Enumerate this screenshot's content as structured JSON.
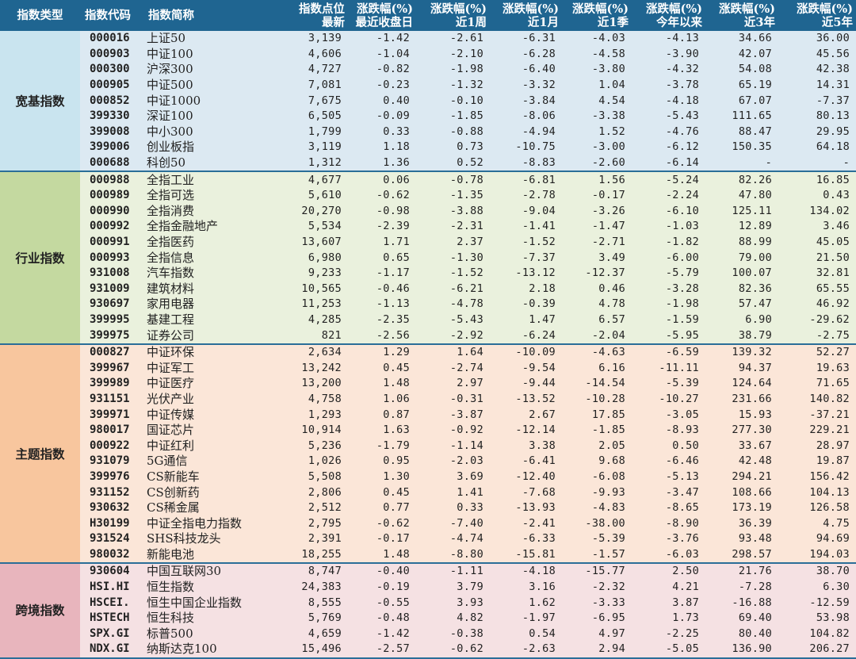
{
  "headers": [
    {
      "line1": "指数类型",
      "line2": ""
    },
    {
      "line1": "指数代码",
      "line2": ""
    },
    {
      "line1": "指数简称",
      "line2": ""
    },
    {
      "line1": "指数点位",
      "line2": "最新"
    },
    {
      "line1": "涨跌幅(%)",
      "line2": "最近收盘日"
    },
    {
      "line1": "涨跌幅(%)",
      "line2": "近1周"
    },
    {
      "line1": "涨跌幅(%)",
      "line2": "近1月"
    },
    {
      "line1": "涨跌幅(%)",
      "line2": "近1季"
    },
    {
      "line1": "涨跌幅(%)",
      "line2": "今年以来"
    },
    {
      "line1": "涨跌幅(%)",
      "line2": "近3年"
    },
    {
      "line1": "涨跌幅(%)",
      "line2": "近5年"
    }
  ],
  "groups": [
    {
      "type": "宽基指数",
      "rows": [
        [
          "000016",
          "上证50",
          "3,139",
          "-1.42",
          "-2.61",
          "-6.31",
          "-4.03",
          "-4.13",
          "34.66",
          "36.00"
        ],
        [
          "000903",
          "中证100",
          "4,606",
          "-1.04",
          "-2.10",
          "-6.28",
          "-4.58",
          "-3.90",
          "42.07",
          "45.56"
        ],
        [
          "000300",
          "沪深300",
          "4,727",
          "-0.82",
          "-1.98",
          "-6.40",
          "-3.80",
          "-4.32",
          "54.08",
          "42.38"
        ],
        [
          "000905",
          "中证500",
          "7,081",
          "-0.23",
          "-1.32",
          "-3.32",
          "1.04",
          "-3.78",
          "65.19",
          "14.31"
        ],
        [
          "000852",
          "中证1000",
          "7,675",
          "0.40",
          "-0.10",
          "-3.84",
          "4.54",
          "-4.18",
          "67.07",
          "-7.37"
        ],
        [
          "399330",
          "深证100",
          "6,505",
          "-0.09",
          "-1.85",
          "-8.06",
          "-3.38",
          "-5.43",
          "111.65",
          "80.13"
        ],
        [
          "399008",
          "中小300",
          "1,799",
          "0.33",
          "-0.88",
          "-4.94",
          "1.52",
          "-4.76",
          "88.47",
          "29.95"
        ],
        [
          "399006",
          "创业板指",
          "3,119",
          "1.18",
          "0.73",
          "-10.75",
          "-3.00",
          "-6.12",
          "150.35",
          "64.18"
        ],
        [
          "000688",
          "科创50",
          "1,312",
          "1.36",
          "0.52",
          "-8.83",
          "-2.60",
          "-6.14",
          "-",
          "-"
        ]
      ]
    },
    {
      "type": "行业指数",
      "rows": [
        [
          "000988",
          "全指工业",
          "4,677",
          "0.06",
          "-0.78",
          "-6.81",
          "1.56",
          "-5.24",
          "82.26",
          "16.85"
        ],
        [
          "000989",
          "全指可选",
          "5,610",
          "-0.62",
          "-1.35",
          "-2.78",
          "-0.17",
          "-2.24",
          "47.80",
          "0.43"
        ],
        [
          "000990",
          "全指消费",
          "20,270",
          "-0.98",
          "-3.88",
          "-9.04",
          "-3.26",
          "-6.10",
          "125.11",
          "134.02"
        ],
        [
          "000992",
          "全指金融地产",
          "5,534",
          "-2.39",
          "-2.31",
          "-1.41",
          "-1.47",
          "-1.03",
          "12.89",
          "3.46"
        ],
        [
          "000991",
          "全指医药",
          "13,607",
          "1.71",
          "2.37",
          "-1.52",
          "-2.71",
          "-1.82",
          "88.99",
          "45.05"
        ],
        [
          "000993",
          "全指信息",
          "6,980",
          "0.65",
          "-1.30",
          "-7.37",
          "3.49",
          "-6.00",
          "79.00",
          "21.50"
        ],
        [
          "931008",
          "汽车指数",
          "9,233",
          "-1.17",
          "-1.52",
          "-13.12",
          "-12.37",
          "-5.79",
          "100.07",
          "32.81"
        ],
        [
          "931009",
          "建筑材料",
          "10,565",
          "-0.46",
          "-6.21",
          "2.18",
          "0.46",
          "-3.28",
          "82.36",
          "65.55"
        ],
        [
          "930697",
          "家用电器",
          "11,253",
          "-1.13",
          "-4.78",
          "-0.39",
          "4.78",
          "-1.98",
          "57.47",
          "46.92"
        ],
        [
          "399995",
          "基建工程",
          "4,285",
          "-2.35",
          "-5.43",
          "1.47",
          "6.57",
          "-1.59",
          "6.90",
          "-29.62"
        ],
        [
          "399975",
          "证券公司",
          "821",
          "-2.56",
          "-2.92",
          "-6.24",
          "-2.04",
          "-5.95",
          "38.79",
          "-2.75"
        ]
      ]
    },
    {
      "type": "主题指数",
      "rows": [
        [
          "000827",
          "中证环保",
          "2,634",
          "1.29",
          "1.64",
          "-10.09",
          "-4.63",
          "-6.59",
          "139.32",
          "52.27"
        ],
        [
          "399967",
          "中证军工",
          "13,242",
          "0.45",
          "-2.74",
          "-9.54",
          "6.16",
          "-11.11",
          "94.37",
          "19.63"
        ],
        [
          "399989",
          "中证医疗",
          "13,200",
          "1.48",
          "2.97",
          "-9.44",
          "-14.54",
          "-5.39",
          "124.64",
          "71.65"
        ],
        [
          "931151",
          "光伏产业",
          "4,758",
          "1.06",
          "-0.31",
          "-13.52",
          "-10.28",
          "-10.27",
          "231.66",
          "140.82"
        ],
        [
          "399971",
          "中证传媒",
          "1,293",
          "0.87",
          "-3.87",
          "2.67",
          "17.85",
          "-3.05",
          "15.93",
          "-37.21"
        ],
        [
          "980017",
          "国证芯片",
          "10,914",
          "1.63",
          "-0.92",
          "-12.14",
          "-1.85",
          "-8.93",
          "277.30",
          "229.21"
        ],
        [
          "000922",
          "中证红利",
          "5,236",
          "-1.79",
          "-1.14",
          "3.38",
          "2.05",
          "0.50",
          "33.67",
          "28.97"
        ],
        [
          "931079",
          "5G通信",
          "1,026",
          "0.95",
          "-2.03",
          "-6.41",
          "9.68",
          "-6.46",
          "42.48",
          "19.87"
        ],
        [
          "399976",
          "CS新能车",
          "5,508",
          "1.30",
          "3.69",
          "-12.40",
          "-6.08",
          "-5.13",
          "294.21",
          "156.42"
        ],
        [
          "931152",
          "CS创新药",
          "2,806",
          "0.45",
          "1.41",
          "-7.68",
          "-9.93",
          "-3.47",
          "108.66",
          "104.13"
        ],
        [
          "930632",
          "CS稀金属",
          "2,512",
          "0.77",
          "0.33",
          "-13.93",
          "-4.83",
          "-8.65",
          "173.19",
          "126.58"
        ],
        [
          "H30199",
          "中证全指电力指数",
          "2,795",
          "-0.62",
          "-7.40",
          "-2.41",
          "-38.00",
          "-8.90",
          "36.39",
          "4.75"
        ],
        [
          "931524",
          "SHS科技龙头",
          "2,391",
          "-0.17",
          "-4.74",
          "-6.33",
          "-5.39",
          "-3.76",
          "93.48",
          "94.69"
        ],
        [
          "980032",
          "新能电池",
          "18,255",
          "1.48",
          "-8.80",
          "-15.81",
          "-1.57",
          "-6.03",
          "298.57",
          "194.03"
        ]
      ]
    },
    {
      "type": "跨境指数",
      "rows": [
        [
          "930604",
          "中国互联网30",
          "8,747",
          "-0.40",
          "-1.11",
          "-4.18",
          "-15.77",
          "2.50",
          "21.76",
          "38.70"
        ],
        [
          "HSI.HI",
          "恒生指数",
          "24,383",
          "-0.19",
          "3.79",
          "3.16",
          "-2.32",
          "4.21",
          "-7.28",
          "6.30"
        ],
        [
          "HSCEI.",
          "恒生中国企业指数",
          "8,555",
          "-0.55",
          "3.93",
          "1.62",
          "-3.33",
          "3.87",
          "-16.88",
          "-12.59"
        ],
        [
          "HSTECH",
          "恒生科技",
          "5,769",
          "-0.48",
          "4.82",
          "-1.97",
          "-6.95",
          "1.73",
          "69.40",
          "53.98"
        ],
        [
          "SPX.GI",
          "标普500",
          "4,659",
          "-1.42",
          "-0.38",
          "0.54",
          "4.97",
          "-2.25",
          "80.40",
          "104.82"
        ],
        [
          "NDX.GI",
          "纳斯达克100",
          "15,496",
          "-2.57",
          "-0.62",
          "-2.63",
          "2.94",
          "-5.05",
          "136.90",
          "206.27"
        ]
      ]
    }
  ]
}
